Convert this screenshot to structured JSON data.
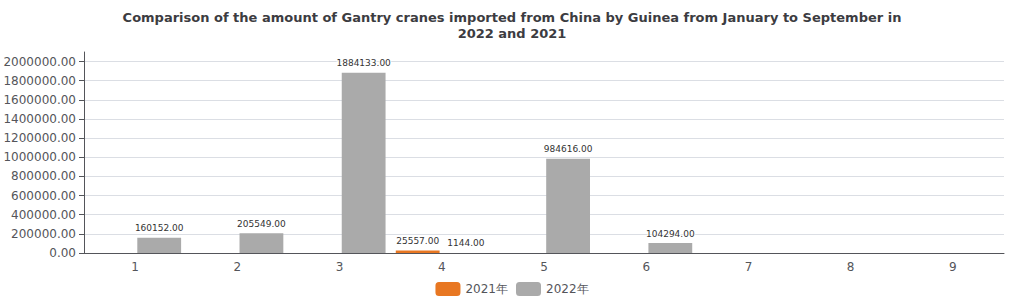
{
  "chart_data": {
    "type": "bar",
    "title": "Comparison of the amount of Gantry cranes imported from China by Guinea from January to September in\n2022 and 2021",
    "categories": [
      1,
      2,
      3,
      4,
      5,
      6,
      7,
      8,
      9
    ],
    "series": [
      {
        "name": "2021年",
        "color": "#E87722",
        "values": [
          0,
          0,
          0,
          25557,
          0,
          0,
          0,
          0,
          0
        ],
        "value_labels": [
          null,
          null,
          null,
          "25557.00",
          null,
          null,
          null,
          null,
          null
        ]
      },
      {
        "name": "2022年",
        "color": "#AAAAAA",
        "values": [
          160152,
          205549,
          1884133,
          1144,
          984616,
          104294,
          0,
          0,
          0
        ],
        "value_labels": [
          "160152.00",
          "205549.00",
          "1884133.00",
          "1144.00",
          "984616.00",
          "104294.00",
          null,
          null,
          null
        ]
      }
    ],
    "ylim": [
      0,
      2100000
    ],
    "yticks": [
      {
        "value": 0,
        "label": "0.00"
      },
      {
        "value": 200000,
        "label": "200000.00"
      },
      {
        "value": 400000,
        "label": "400000.00"
      },
      {
        "value": 600000,
        "label": "600000.00"
      },
      {
        "value": 800000,
        "label": "800000.00"
      },
      {
        "value": 1000000,
        "label": "1000000.00"
      },
      {
        "value": 1200000,
        "label": "1200000.00"
      },
      {
        "value": 1400000,
        "label": "1400000.00"
      },
      {
        "value": 1600000,
        "label": "1600000.00"
      },
      {
        "value": 1800000,
        "label": "1800000.00"
      },
      {
        "value": 2000000,
        "label": "2000000.00"
      }
    ],
    "grid": true,
    "legend": "bottom",
    "data_labels": true
  }
}
